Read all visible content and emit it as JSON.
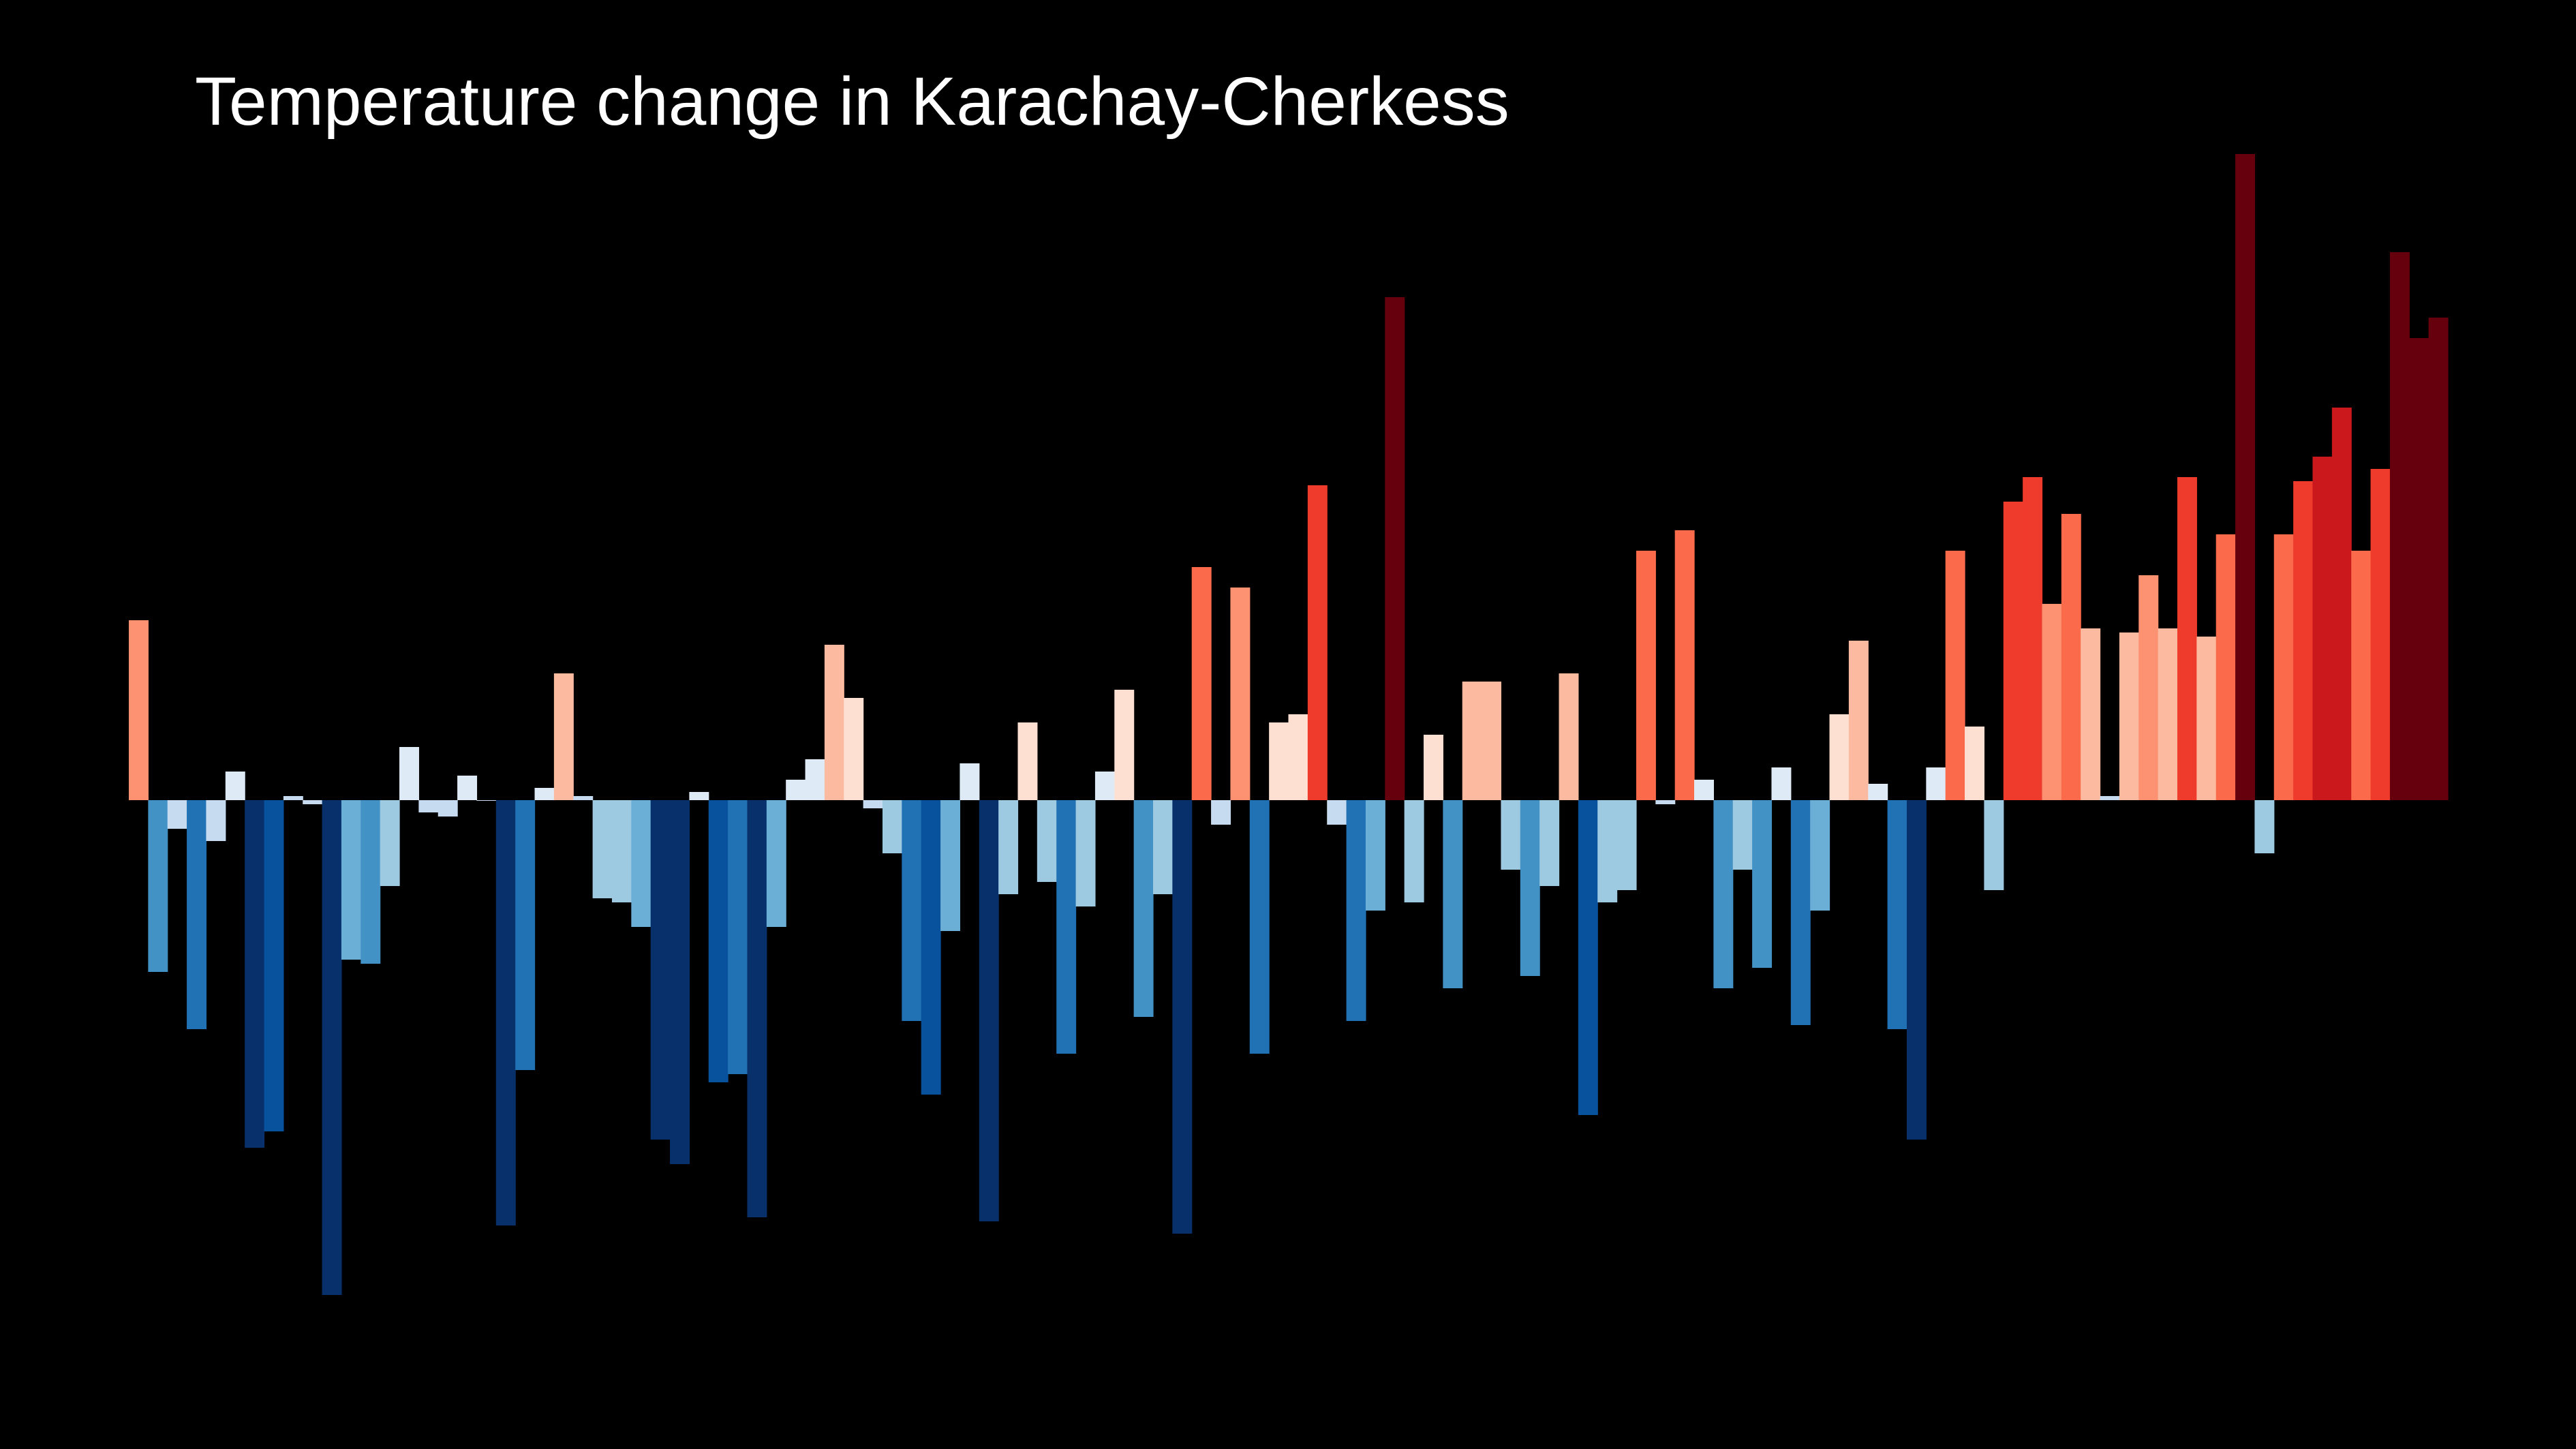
{
  "chart_data": {
    "type": "bar",
    "title": "Temperature change in Karachay-Cherkess",
    "xlabel": "",
    "ylabel": "",
    "axes_visible": false,
    "grid": false,
    "legend": "none",
    "colormap": "RdBu_r (blue = colder, red = warmer)",
    "background": "#000000",
    "title_color": "#ffffff",
    "ylim": [
      -1.2,
      1.75
    ],
    "values": [
      0.44,
      -0.42,
      -0.07,
      -0.56,
      -0.1,
      0.07,
      -0.85,
      -0.81,
      0.01,
      -0.01,
      -1.21,
      -0.39,
      -0.4,
      -0.21,
      0.13,
      -0.03,
      -0.04,
      0.06,
      0,
      -1.04,
      -0.66,
      0.03,
      0.31,
      0.01,
      -0.24,
      -0.25,
      -0.31,
      -0.83,
      -0.89,
      0.02,
      -0.69,
      -0.67,
      -1.02,
      -0.31,
      0.05,
      0.1,
      0.38,
      0.25,
      -0.02,
      -0.13,
      -0.54,
      -0.72,
      -0.32,
      0.09,
      -1.03,
      -0.23,
      0.19,
      -0.2,
      -0.62,
      -0.26,
      0.07,
      0.27,
      -0.53,
      -0.23,
      -1.06,
      0.57,
      -0.06,
      0.52,
      -0.62,
      0.19,
      0.21,
      0.77,
      -0.06,
      -0.54,
      -0.27,
      1.23,
      -0.25,
      0.16,
      -0.46,
      0.29,
      0.29,
      -0.17,
      -0.43,
      -0.21,
      0.31,
      -0.77,
      -0.25,
      -0.22,
      0.61,
      -0.01,
      0.66,
      0.05,
      -0.46,
      -0.17,
      -0.41,
      0.08,
      -0.55,
      -0.27,
      0.21,
      0.39,
      0.04,
      -0.56,
      -0.83,
      0.08,
      0.61,
      0.18,
      -0.22,
      0.73,
      0.79,
      0.48,
      0.7,
      0.42,
      0.01,
      0.41,
      0.55,
      0.42,
      0.79,
      0.4,
      0.65,
      1.58,
      -0.13,
      0.65,
      0.78,
      0.84,
      0.96,
      0.61,
      0.81,
      1.34,
      1.13,
      1.18
    ]
  }
}
